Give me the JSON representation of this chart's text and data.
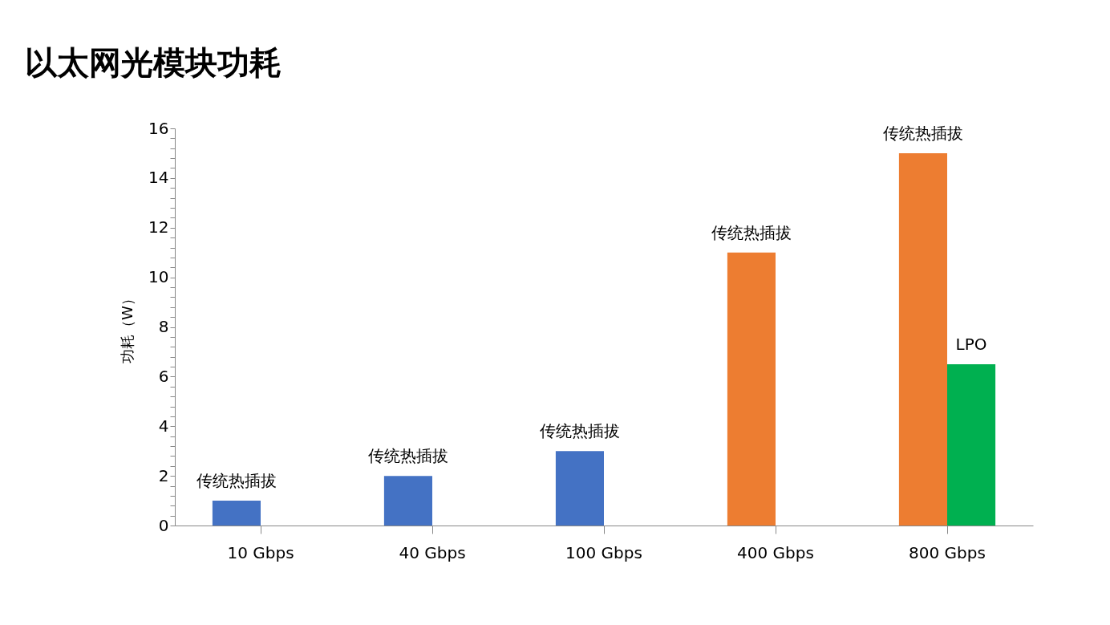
{
  "chart_data": {
    "type": "bar",
    "title": "以太网光模块功耗",
    "ylabel": "功耗（W）",
    "categories": [
      "10 Gbps",
      "40 Gbps",
      "100 Gbps",
      "400 Gbps",
      "800 Gbps"
    ],
    "series": [
      {
        "name": "传统热插拔",
        "colors": [
          "#4472c4",
          "#4472c4",
          "#4472c4",
          "#ed7d31",
          "#ed7d31"
        ],
        "values": [
          1,
          2,
          3,
          11,
          15
        ]
      },
      {
        "name": "LPO",
        "color": "#00b050",
        "values": [
          null,
          null,
          null,
          null,
          6.5
        ]
      }
    ],
    "ylim": [
      0,
      16
    ],
    "yticks": [
      0,
      {
        "value": 0.4,
        "label": null
      },
      {
        "value": 0.8,
        "label": null
      },
      {
        "value": 1.2,
        "label": null
      },
      {
        "value": 1.6,
        "label": null
      },
      2,
      {
        "value": 2.4,
        "label": null
      },
      {
        "value": 2.8,
        "label": null
      },
      {
        "value": 3.2,
        "label": null
      },
      {
        "value": 3.6,
        "label": null
      },
      4,
      {
        "value": 4.4,
        "label": null
      },
      {
        "value": 4.8,
        "label": null
      },
      {
        "value": 5.2,
        "label": null
      },
      {
        "value": 5.6,
        "label": null
      },
      6,
      {
        "value": 6.4,
        "label": null
      },
      {
        "value": 6.8,
        "label": null
      },
      {
        "value": 7.2,
        "label": null
      },
      {
        "value": 7.6,
        "label": null
      },
      8,
      {
        "value": 8.4,
        "label": null
      },
      {
        "value": 8.8,
        "label": null
      },
      {
        "value": 9.2,
        "label": null
      },
      {
        "value": 9.6,
        "label": null
      },
      10,
      {
        "value": 10.4,
        "label": null
      },
      {
        "value": 10.8,
        "label": null
      },
      {
        "value": 11.2,
        "label": null
      },
      {
        "value": 11.6,
        "label": null
      },
      12,
      {
        "value": 12.4,
        "label": null
      },
      {
        "value": 12.8,
        "label": null
      },
      {
        "value": 13.2,
        "label": null
      },
      {
        "value": 13.6,
        "label": null
      },
      14,
      {
        "value": 14.4,
        "label": null
      },
      {
        "value": 14.8,
        "label": null
      },
      {
        "value": 15.2,
        "label": null
      },
      {
        "value": 15.6,
        "label": null
      },
      16
    ],
    "grid": false
  }
}
